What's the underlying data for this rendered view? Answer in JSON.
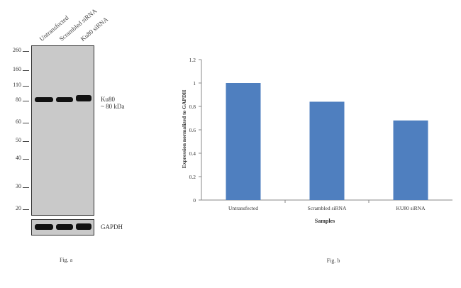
{
  "western_blot": {
    "lane_labels": [
      "Untransfected",
      "Scrambled siRNA",
      "Ku80 siRNA"
    ],
    "mw_markers": [
      "260",
      "160",
      "110",
      "80",
      "60",
      "50",
      "40",
      "30",
      "20"
    ],
    "target_label": "Ku80",
    "target_size": "~ 80 kDa",
    "loading_control": "GAPDH",
    "figure_label": "Fig. a"
  },
  "chart_data": {
    "type": "bar",
    "categories": [
      "Untransfected",
      "Scrambled siRNA",
      "KU80 siRNA"
    ],
    "values": [
      1.0,
      0.84,
      0.68
    ],
    "xlabel": "Samples",
    "ylabel": "Expression normalized to GAPDH",
    "ylim": [
      0,
      1.2
    ],
    "yticks": [
      "0",
      "0.2",
      "0.4",
      "0.6",
      "0.8",
      "1",
      "1.2"
    ],
    "bar_color": "#4f7fbf",
    "grid": false,
    "figure_label": "Fig. b"
  }
}
